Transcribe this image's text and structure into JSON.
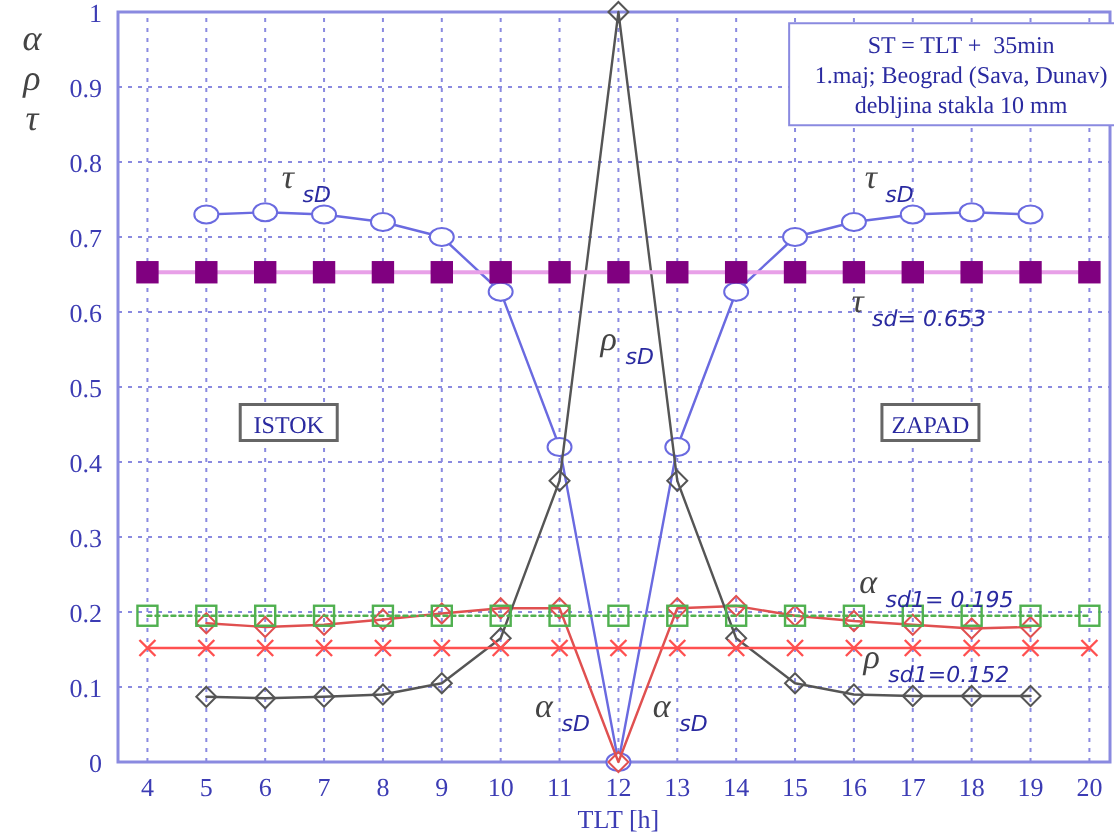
{
  "chart_data": {
    "type": "line",
    "xlabel": "TLT [h]",
    "ylabel": "α ρ τ",
    "xlim": [
      3.5,
      20.35
    ],
    "ylim": [
      0,
      1
    ],
    "xticks": [
      4,
      5,
      6,
      7,
      8,
      9,
      10,
      11,
      12,
      13,
      14,
      15,
      16,
      17,
      18,
      19,
      20
    ],
    "yticks": [
      0,
      0.1,
      0.2,
      0.3,
      0.4,
      0.5,
      0.6,
      0.7,
      0.8,
      0.9,
      1
    ],
    "grid": true,
    "series": [
      {
        "color": "#6a6ae0",
        "marker": "circle",
        "x": [
          5,
          6,
          7,
          8,
          9,
          10,
          11,
          12,
          13,
          14,
          15,
          16,
          17,
          18,
          19
        ],
        "values": [
          0.73,
          0.733,
          0.73,
          0.72,
          0.7,
          0.627,
          0.42,
          0,
          0.42,
          0.627,
          0.7,
          0.72,
          0.73,
          0.733,
          0.73
        ]
      },
      {
        "color": "#e05050",
        "marker": "diamond",
        "x": [
          5,
          6,
          7,
          8,
          9,
          10,
          11,
          12,
          13,
          14,
          15,
          16,
          17,
          18,
          19
        ],
        "values": [
          0.185,
          0.18,
          0.183,
          0.19,
          0.198,
          0.205,
          0.205,
          0,
          0.205,
          0.208,
          0.195,
          0.188,
          0.183,
          0.178,
          0.18
        ]
      },
      {
        "color": "#555555",
        "marker": "diamond",
        "x": [
          5,
          6,
          7,
          8,
          9,
          10,
          11,
          12,
          13,
          14,
          15,
          16,
          17,
          18,
          19
        ],
        "values": [
          0.087,
          0.085,
          0.087,
          0.09,
          0.105,
          0.165,
          0.375,
          1,
          0.375,
          0.165,
          0.105,
          0.09,
          0.088,
          0.088,
          0.088
        ]
      },
      {
        "color": "#800080",
        "marker": "square",
        "x": [
          4,
          5,
          6,
          7,
          8,
          9,
          10,
          11,
          12,
          13,
          14,
          15,
          16,
          17,
          18,
          19,
          20
        ],
        "values": [
          0.653,
          0.653,
          0.653,
          0.653,
          0.653,
          0.653,
          0.653,
          0.653,
          0.653,
          0.653,
          0.653,
          0.653,
          0.653,
          0.653,
          0.653,
          0.653,
          0.653
        ]
      },
      {
        "color": "#50b050",
        "marker": "square",
        "line_style": "dotted",
        "x": [
          4,
          5,
          6,
          7,
          8,
          9,
          10,
          11,
          12,
          13,
          14,
          15,
          16,
          17,
          18,
          19,
          20
        ],
        "values": [
          0.195,
          0.195,
          0.195,
          0.195,
          0.195,
          0.195,
          0.195,
          0.195,
          0.195,
          0.195,
          0.195,
          0.195,
          0.195,
          0.195,
          0.195,
          0.195,
          0.195
        ]
      },
      {
        "color": "#ff5050",
        "marker": "cross",
        "x": [
          4,
          5,
          6,
          7,
          8,
          9,
          10,
          11,
          12,
          13,
          14,
          15,
          16,
          17,
          18,
          19,
          20
        ],
        "values": [
          0.152,
          0.152,
          0.152,
          0.152,
          0.152,
          0.152,
          0.152,
          0.152,
          0.152,
          0.152,
          0.152,
          0.152,
          0.152,
          0.152,
          0.152,
          0.152,
          0.152
        ]
      }
    ],
    "annotations": [
      "ST = TLT +  35min\n1.maj; Beograd (Sava, Dunav)\ndebljina stakla 10 mm",
      "τ $_{sD}$",
      "τ $_{sD}$",
      "ρ $_{sD}$",
      "α $_{sD}$",
      "α $_{sD}$",
      "τ $_{sd= 0.653}$",
      "α $_{sd1= 0.195}$",
      "ρ $_{sd1=0.152}$",
      "ISTOK",
      "ZAPAD"
    ]
  }
}
